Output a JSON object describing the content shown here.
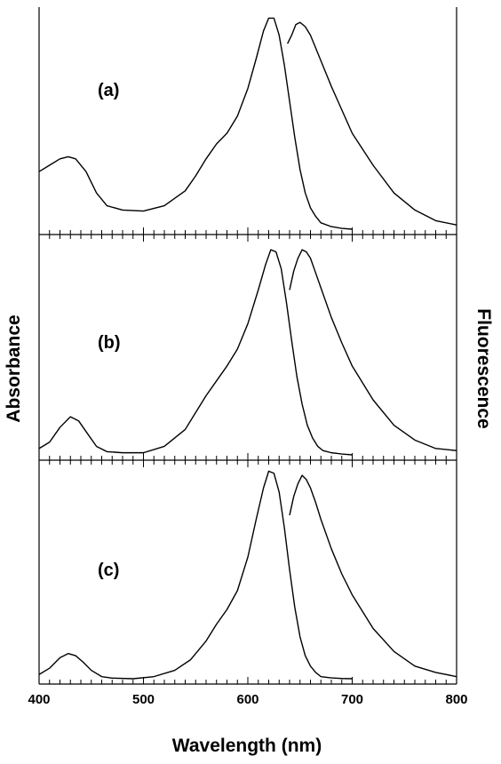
{
  "chart_data": {
    "type": "line",
    "xlabel": "Wavelength (nm)",
    "ylabel_left": "Absorbance",
    "ylabel_right": "Fluorescence",
    "xlim": [
      400,
      800
    ],
    "xticks": [
      "400",
      "500",
      "600",
      "700",
      "800"
    ],
    "y_axis_numbered": false,
    "grid": false,
    "panels": [
      {
        "label": "(a)",
        "ylim": [
          0,
          1
        ],
        "series": [
          {
            "kind": "absorbance",
            "x": [
              400,
              410,
              420,
              428,
              435,
              445,
              455,
              465,
              480,
              500,
              520,
              540,
              550,
              560,
              570,
              580,
              590,
              600,
              608,
              615,
              620,
              625,
              630,
              635,
              640,
              645,
              650,
              655,
              660,
              665,
              670,
              680,
              690,
              700
            ],
            "y": [
              0.27,
              0.3,
              0.33,
              0.34,
              0.33,
              0.27,
              0.17,
              0.11,
              0.09,
              0.085,
              0.11,
              0.18,
              0.25,
              0.33,
              0.4,
              0.45,
              0.53,
              0.66,
              0.8,
              0.93,
              0.99,
              0.99,
              0.91,
              0.77,
              0.6,
              0.43,
              0.28,
              0.17,
              0.1,
              0.06,
              0.03,
              0.012,
              0.004,
              0.0
            ]
          },
          {
            "kind": "fluorescence",
            "x": [
              638,
              642,
              646,
              650,
              655,
              660,
              665,
              670,
              680,
              690,
              700,
              720,
              740,
              760,
              780,
              800
            ],
            "y": [
              0.87,
              0.91,
              0.96,
              0.97,
              0.95,
              0.91,
              0.85,
              0.79,
              0.67,
              0.56,
              0.45,
              0.3,
              0.17,
              0.09,
              0.04,
              0.02
            ]
          }
        ]
      },
      {
        "label": "(b)",
        "ylim": [
          0,
          1
        ],
        "series": [
          {
            "kind": "absorbance",
            "x": [
              400,
              410,
              420,
              430,
              438,
              445,
              455,
              465,
              480,
              500,
              520,
              540,
              550,
              560,
              570,
              580,
              590,
              600,
              610,
              617,
              622,
              627,
              632,
              637,
              642,
              647,
              652,
              657,
              662,
              667,
              672,
              680,
              690,
              700
            ],
            "y": [
              0.03,
              0.06,
              0.13,
              0.18,
              0.16,
              0.11,
              0.04,
              0.015,
              0.01,
              0.01,
              0.04,
              0.12,
              0.2,
              0.28,
              0.35,
              0.42,
              0.5,
              0.62,
              0.78,
              0.9,
              0.97,
              0.96,
              0.88,
              0.72,
              0.54,
              0.37,
              0.24,
              0.14,
              0.08,
              0.04,
              0.02,
              0.01,
              0.004,
              0.0
            ]
          },
          {
            "kind": "fluorescence",
            "x": [
              640,
              644,
              648,
              652,
              656,
              660,
              665,
              670,
              680,
              690,
              700,
              720,
              740,
              760,
              780,
              800
            ],
            "y": [
              0.78,
              0.87,
              0.93,
              0.97,
              0.96,
              0.93,
              0.86,
              0.79,
              0.65,
              0.53,
              0.42,
              0.26,
              0.14,
              0.07,
              0.03,
              0.02
            ]
          }
        ]
      },
      {
        "label": "(c)",
        "ylim": [
          0,
          1
        ],
        "series": [
          {
            "kind": "absorbance",
            "x": [
              400,
              410,
              420,
              428,
              435,
              442,
              450,
              460,
              470,
              490,
              510,
              530,
              545,
              560,
              570,
              580,
              590,
              600,
              608,
              615,
              620,
              625,
              630,
              635,
              640,
              645,
              650,
              655,
              660,
              665,
              670,
              680,
              690,
              700
            ],
            "y": [
              0.02,
              0.05,
              0.1,
              0.12,
              0.11,
              0.08,
              0.04,
              0.01,
              0.003,
              0.0,
              0.01,
              0.04,
              0.09,
              0.18,
              0.26,
              0.33,
              0.42,
              0.58,
              0.76,
              0.91,
              0.99,
              0.98,
              0.89,
              0.72,
              0.52,
              0.34,
              0.2,
              0.11,
              0.06,
              0.03,
              0.01,
              0.004,
              0.001,
              0.0
            ]
          },
          {
            "kind": "fluorescence",
            "x": [
              640,
              644,
              648,
              652,
              656,
              660,
              665,
              670,
              680,
              690,
              700,
              720,
              740,
              760,
              780,
              800
            ],
            "y": [
              0.78,
              0.87,
              0.93,
              0.97,
              0.95,
              0.91,
              0.84,
              0.76,
              0.62,
              0.5,
              0.4,
              0.24,
              0.13,
              0.06,
              0.03,
              0.01
            ]
          }
        ]
      }
    ]
  }
}
